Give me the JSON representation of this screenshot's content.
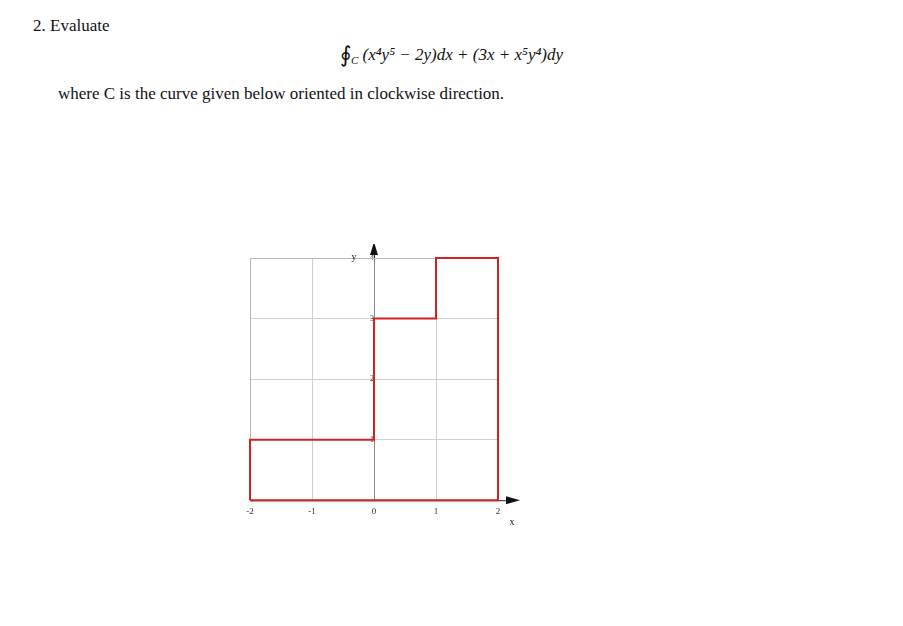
{
  "problem": {
    "number": "2.",
    "instruction": "Evaluate",
    "integral": {
      "symbol": "∮",
      "contour": "C",
      "integrand": "(x⁴y⁵ − 2y)dx + (3x + x⁵y⁴)dy"
    },
    "text": "where C is the curve given below oriented in clockwise direction."
  },
  "chart_data": {
    "type": "line",
    "x_label": "x",
    "y_label": "y",
    "x": [
      -2,
      2,
      2,
      1,
      1,
      0,
      0,
      -2,
      -2
    ],
    "values": [
      0,
      0,
      4,
      4,
      3,
      3,
      1,
      1,
      0
    ],
    "color": "#d42020",
    "marker": "none",
    "xlim": [
      -2,
      2
    ],
    "ylim": [
      0,
      4
    ],
    "xticks": [
      -2,
      -1,
      0,
      1,
      2
    ],
    "yticks": [
      1,
      2,
      3,
      4
    ],
    "grid": true
  }
}
